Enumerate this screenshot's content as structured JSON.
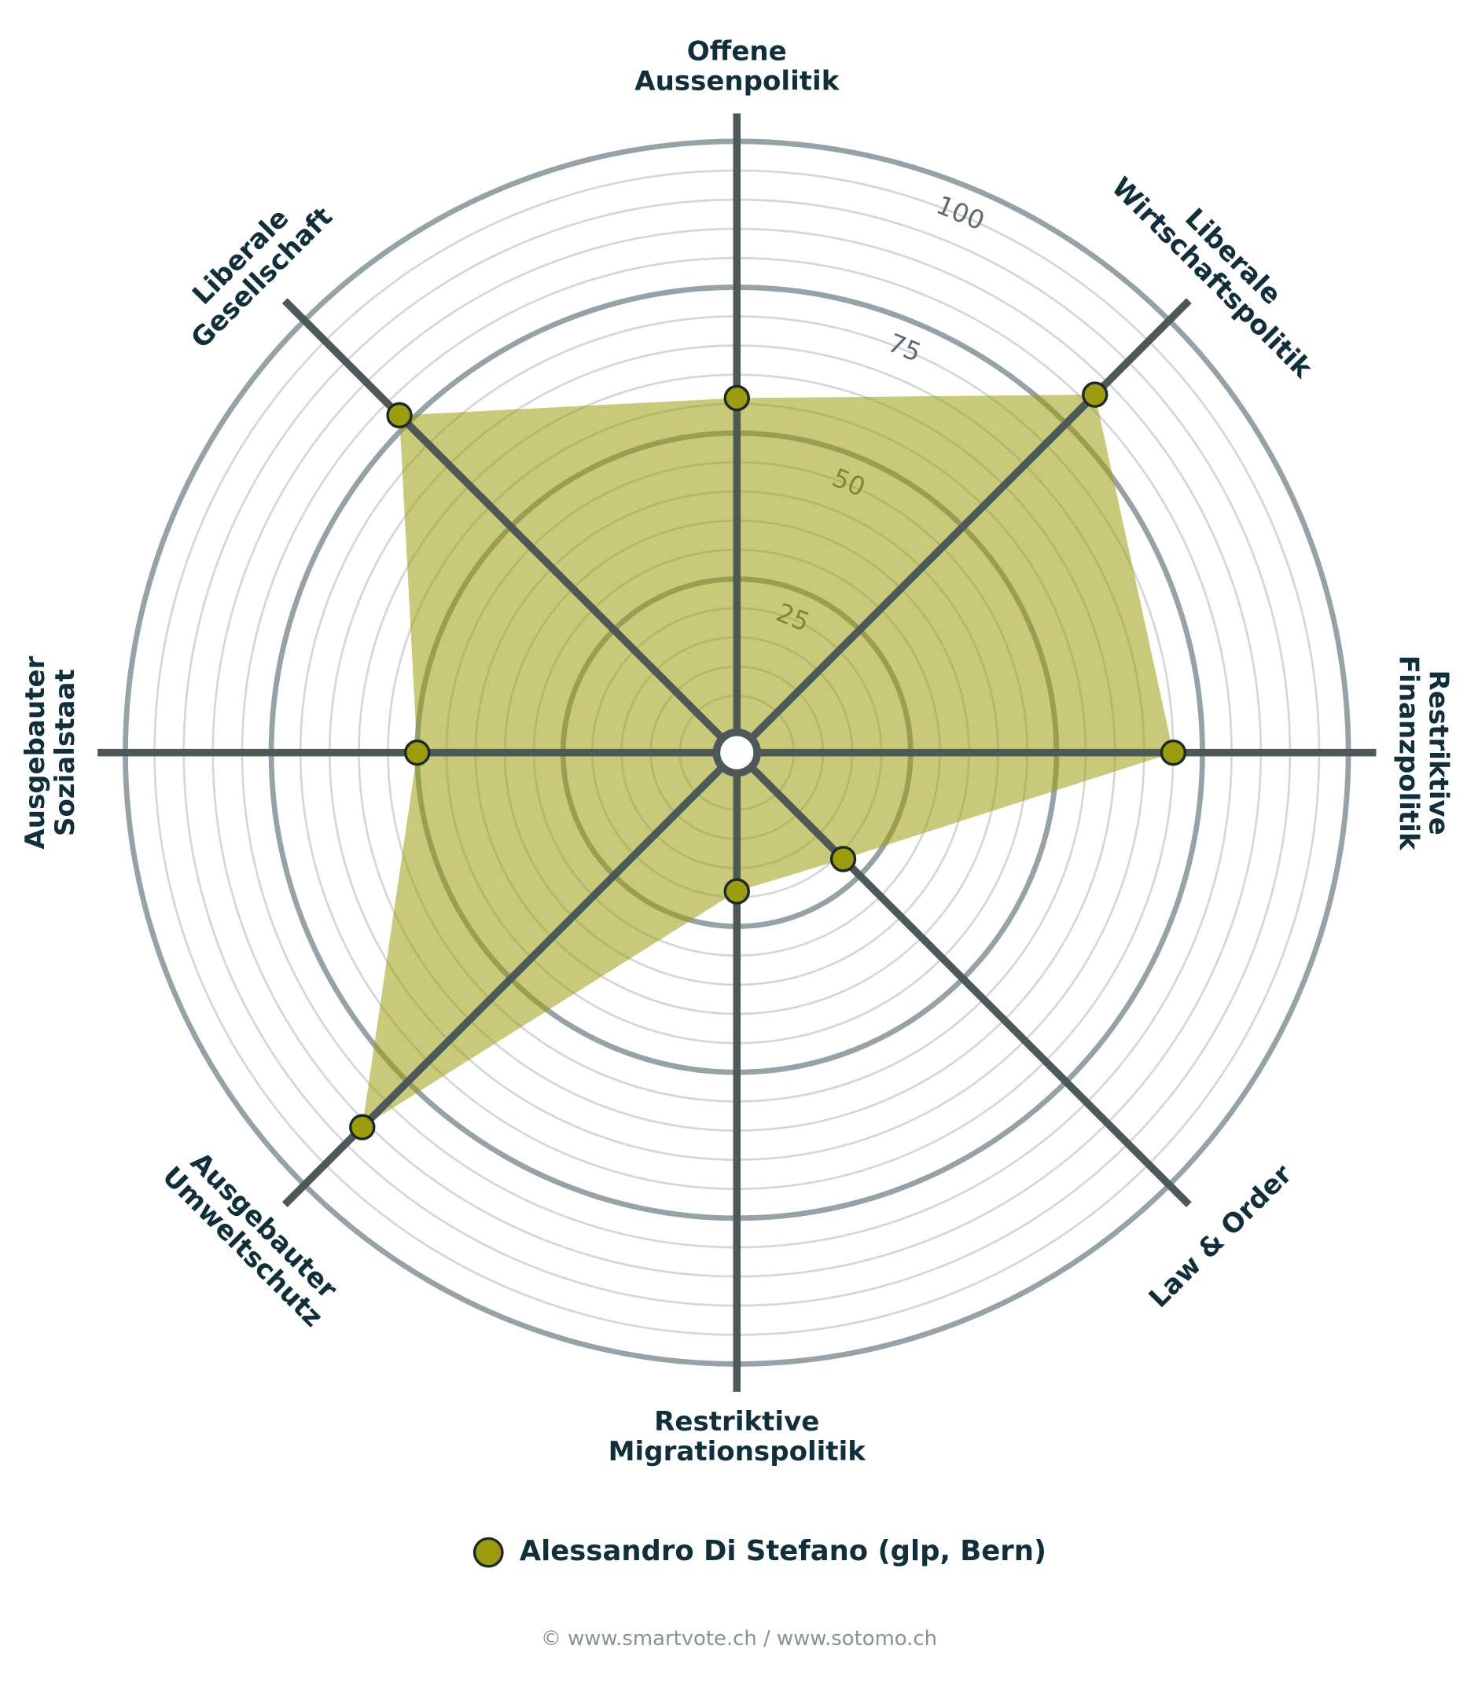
{
  "chart_data": {
    "type": "radar",
    "categories": [
      [
        "Offene",
        "Aussenpolitik"
      ],
      [
        "Liberale",
        "Wirtschaftspolitik"
      ],
      [
        "Restriktive",
        "Finanzpolitik"
      ],
      [
        "Law & Order"
      ],
      [
        "Restriktive",
        "Migrationspolitik"
      ],
      [
        "Ausgebauter",
        "Umweltschutz"
      ],
      [
        "Ausgebauter",
        "Sozialstaat"
      ],
      [
        "Liberale",
        "Gesellschaft"
      ]
    ],
    "series": [
      {
        "name": "Alessandro Di Stefano (glp, Bern)",
        "color": "#9c9c0c",
        "values": [
          56,
          82,
          70,
          21,
          19,
          86,
          50,
          77
        ]
      }
    ],
    "ylim": [
      0,
      100
    ],
    "yticks": [
      25,
      50,
      75,
      100
    ],
    "grid": true
  },
  "footer": "© www.smartvote.ch / www.sotomo.ch"
}
